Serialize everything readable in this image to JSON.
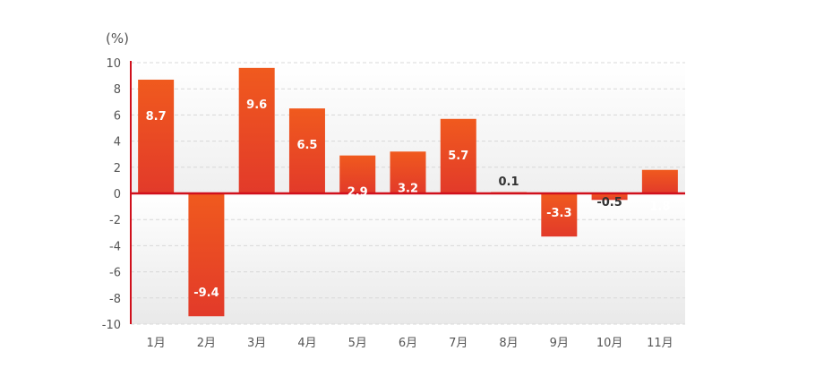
{
  "chart_data": {
    "type": "bar",
    "unit_label": "(%)",
    "categories": [
      "1月",
      "2月",
      "3月",
      "4月",
      "5月",
      "6月",
      "7月",
      "8月",
      "9月",
      "10月",
      "11月"
    ],
    "values": [
      8.7,
      -9.4,
      9.6,
      6.5,
      2.9,
      3.2,
      5.7,
      0.1,
      -3.3,
      -0.5,
      1.8
    ],
    "value_labels": [
      "8.7",
      "-9.4",
      "9.6",
      "6.5",
      "2.9",
      "3.2",
      "5.7",
      "0.1",
      "-3.3",
      "-0.5",
      "1.8"
    ],
    "yticks": [
      "10",
      "8",
      "6",
      "4",
      "2",
      "0",
      "-2",
      "-4",
      "-6",
      "-8",
      "-10"
    ],
    "ylim": [
      -10,
      10
    ],
    "grid": true,
    "colors": {
      "bar_top": "#f05a1e",
      "bar_bottom": "#e23a2a",
      "axis": "#d0101c",
      "grid": "#d8d8d8"
    }
  }
}
